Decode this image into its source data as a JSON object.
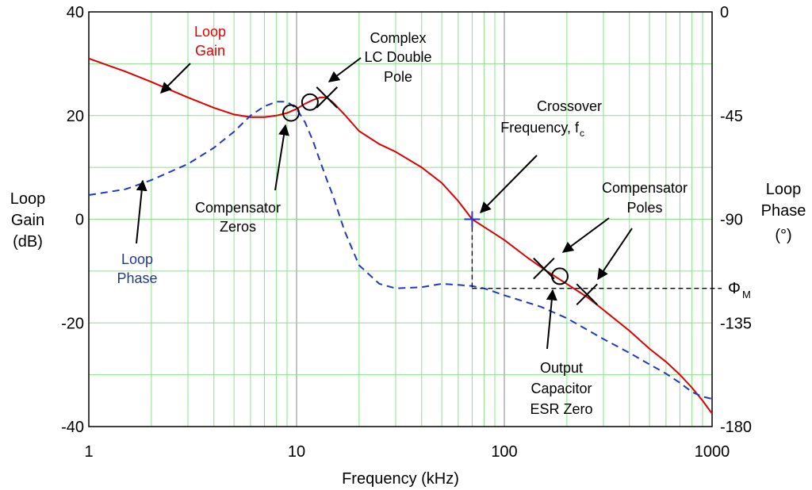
{
  "chart_data": {
    "type": "line",
    "x_scale": "log",
    "grid": true,
    "xlabel": "Frequency (kHz)",
    "ylabel_left": [
      "Loop",
      "Gain",
      "(dB)"
    ],
    "ylabel_right": [
      "Loop",
      "Phase",
      "(°)"
    ],
    "xlim": [
      1,
      1000
    ],
    "ylim_left": [
      -40,
      40
    ],
    "ylim_right": [
      -180,
      0
    ],
    "x_ticks": [
      {
        "v": 1,
        "label": "1"
      },
      {
        "v": 10,
        "label": "10"
      },
      {
        "v": 100,
        "label": "100"
      },
      {
        "v": 1000,
        "label": "1000"
      }
    ],
    "y_left_ticks": [
      {
        "v": 40,
        "label": "40"
      },
      {
        "v": 20,
        "label": "20"
      },
      {
        "v": 0,
        "label": "0"
      },
      {
        "v": -20,
        "label": "-20"
      },
      {
        "v": -40,
        "label": "-40"
      }
    ],
    "y_right_ticks": [
      {
        "v": 0,
        "label": "0"
      },
      {
        "v": -45,
        "label": "-45"
      },
      {
        "v": -90,
        "label": "-90"
      },
      {
        "v": -135,
        "label": "-135"
      },
      {
        "v": -180,
        "label": "-180"
      }
    ],
    "series": [
      {
        "axis": "left",
        "color": "#e00000",
        "dash": "solid",
        "points": [
          [
            1,
            31
          ],
          [
            1.5,
            28.5
          ],
          [
            2,
            26.5
          ],
          [
            3,
            23.5
          ],
          [
            4,
            21.5
          ],
          [
            5,
            20.2
          ],
          [
            6,
            19.7
          ],
          [
            7,
            19.7
          ],
          [
            8,
            20
          ],
          [
            9,
            20.5
          ],
          [
            10,
            21.3
          ],
          [
            11,
            22.3
          ],
          [
            12,
            23
          ],
          [
            13,
            23.5
          ],
          [
            14,
            23.5
          ],
          [
            15,
            22.5
          ],
          [
            17,
            20.2
          ],
          [
            20,
            17
          ],
          [
            25,
            14.5
          ],
          [
            30,
            13
          ],
          [
            40,
            10
          ],
          [
            50,
            7
          ],
          [
            60,
            3.5
          ],
          [
            70,
            0
          ],
          [
            80,
            -1.5
          ],
          [
            100,
            -4
          ],
          [
            130,
            -7.5
          ],
          [
            160,
            -10
          ],
          [
            200,
            -12.5
          ],
          [
            250,
            -15
          ],
          [
            300,
            -17.5
          ],
          [
            400,
            -21.5
          ],
          [
            500,
            -25
          ],
          [
            600,
            -27.5
          ],
          [
            700,
            -30
          ],
          [
            800,
            -32.5
          ],
          [
            900,
            -35
          ],
          [
            1000,
            -37.5
          ]
        ]
      },
      {
        "axis": "right",
        "color": "#1f3abf",
        "dash": "dashed",
        "points": [
          [
            1,
            -79.5
          ],
          [
            1.5,
            -77
          ],
          [
            2,
            -73
          ],
          [
            3,
            -66
          ],
          [
            4,
            -59
          ],
          [
            5,
            -52
          ],
          [
            6,
            -45
          ],
          [
            7,
            -41
          ],
          [
            8,
            -39
          ],
          [
            9,
            -39
          ],
          [
            10,
            -42
          ],
          [
            11,
            -48
          ],
          [
            12,
            -56
          ],
          [
            13,
            -65
          ],
          [
            14,
            -73
          ],
          [
            15,
            -80
          ],
          [
            17,
            -95
          ],
          [
            20,
            -110
          ],
          [
            25,
            -118
          ],
          [
            30,
            -120
          ],
          [
            40,
            -119.5
          ],
          [
            50,
            -118
          ],
          [
            60,
            -118.5
          ],
          [
            70,
            -119
          ],
          [
            80,
            -120
          ],
          [
            100,
            -123
          ],
          [
            150,
            -128
          ],
          [
            200,
            -133
          ],
          [
            300,
            -142
          ],
          [
            400,
            -148
          ],
          [
            500,
            -153
          ],
          [
            600,
            -157
          ],
          [
            700,
            -161
          ],
          [
            800,
            -165
          ],
          [
            900,
            -167
          ],
          [
            1000,
            -168
          ]
        ]
      }
    ],
    "markers": [
      {
        "type": "circle",
        "x": 9.4,
        "y": 20.5
      },
      {
        "type": "circle",
        "x": 11.6,
        "y": 22.6
      },
      {
        "type": "cross",
        "x": 14,
        "y": 23.5
      },
      {
        "type": "cross",
        "x": 155,
        "y": -9.5
      },
      {
        "type": "circle",
        "x": 185,
        "y": -11
      },
      {
        "type": "cross",
        "x": 250,
        "y": -14.5
      },
      {
        "type": "plus",
        "x": 70,
        "y": 0
      }
    ],
    "phase_margin": {
      "x": 70,
      "y_right": -120,
      "label": "Φ",
      "sub": "M"
    },
    "annotations": {
      "loop_gain": [
        "Loop",
        "Gain"
      ],
      "loop_phase": [
        "Loop",
        "Phase"
      ],
      "lc_pole": [
        "Complex",
        "LC Double",
        "Pole"
      ],
      "comp_zeros": [
        "Compensator",
        "Zeros"
      ],
      "crossover": [
        "Crossover",
        "Frequency, f"
      ],
      "crossover_sub": "c",
      "comp_poles": [
        "Compensator",
        "Poles"
      ],
      "esr_zero": [
        "Output",
        "Capacitor",
        "ESR Zero"
      ]
    }
  }
}
